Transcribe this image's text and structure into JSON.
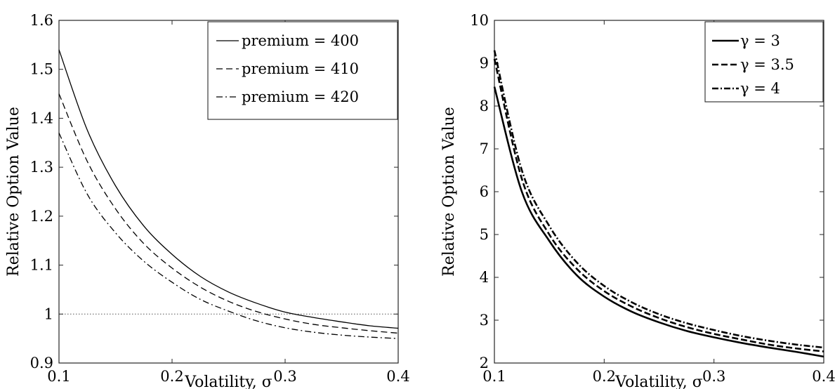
{
  "chart_data": [
    {
      "type": "line",
      "xlabel": "Volatility, σ",
      "ylabel": "Relative Option Value",
      "xlim": [
        0.1,
        0.4
      ],
      "ylim": [
        0.9,
        1.6
      ],
      "xticks": [
        "0.1",
        "0.2",
        "0.3",
        "0.4"
      ],
      "xtick_values": [
        0.1,
        0.2,
        0.3,
        0.4
      ],
      "yticks": [
        "0.9",
        "1",
        "1.1",
        "1.2",
        "1.3",
        "1.4",
        "1.5",
        "1.6"
      ],
      "ytick_values": [
        0.9,
        1.0,
        1.1,
        1.2,
        1.3,
        1.4,
        1.5,
        1.6
      ],
      "grid": false,
      "legend_position": "top-right",
      "reference_line": {
        "y": 1.0,
        "style": "dotted"
      },
      "x": [
        0.1,
        0.125,
        0.15,
        0.175,
        0.2,
        0.225,
        0.25,
        0.275,
        0.3,
        0.325,
        0.35,
        0.375,
        0.4
      ],
      "series": [
        {
          "name": "premium = 400",
          "style": "solid",
          "values": [
            1.54,
            1.376,
            1.262,
            1.18,
            1.122,
            1.077,
            1.045,
            1.022,
            1.004,
            0.993,
            0.984,
            0.976,
            0.971
          ]
        },
        {
          "name": "premium = 410",
          "style": "dashed",
          "values": [
            1.45,
            1.312,
            1.215,
            1.144,
            1.094,
            1.055,
            1.026,
            1.005,
            0.99,
            0.979,
            0.972,
            0.966,
            0.961
          ]
        },
        {
          "name": "premium = 420",
          "style": "dashdot",
          "values": [
            1.37,
            1.245,
            1.166,
            1.108,
            1.065,
            1.03,
            1.006,
            0.986,
            0.972,
            0.963,
            0.957,
            0.953,
            0.95
          ]
        }
      ]
    },
    {
      "type": "line",
      "xlabel": "Volatility, σ",
      "ylabel": "Relative Option Value",
      "xlim": [
        0.1,
        0.4
      ],
      "ylim": [
        2,
        10
      ],
      "xticks": [
        "0.1",
        "0.2",
        "0.3",
        "0.4"
      ],
      "xtick_values": [
        0.1,
        0.2,
        0.3,
        0.4
      ],
      "yticks": [
        "2",
        "3",
        "4",
        "5",
        "6",
        "7",
        "8",
        "9",
        "10"
      ],
      "ytick_values": [
        2,
        3,
        4,
        5,
        6,
        7,
        8,
        9,
        10
      ],
      "grid": false,
      "legend_position": "top-right",
      "x": [
        0.1,
        0.125,
        0.15,
        0.175,
        0.2,
        0.225,
        0.25,
        0.275,
        0.3,
        0.325,
        0.35,
        0.375,
        0.4
      ],
      "series": [
        {
          "name": "γ = 3",
          "style": "solid-bold",
          "values": [
            8.45,
            6.0,
            4.85,
            4.05,
            3.55,
            3.2,
            2.95,
            2.75,
            2.6,
            2.47,
            2.36,
            2.26,
            2.15
          ]
        },
        {
          "name": "γ = 3.5",
          "style": "dashed-bold",
          "values": [
            9.1,
            6.3,
            5.0,
            4.2,
            3.68,
            3.32,
            3.05,
            2.84,
            2.68,
            2.55,
            2.43,
            2.34,
            2.27
          ]
        },
        {
          "name": "γ = 4",
          "style": "dashdot-bold",
          "values": [
            9.3,
            6.5,
            5.2,
            4.35,
            3.8,
            3.42,
            3.14,
            2.93,
            2.77,
            2.63,
            2.52,
            2.43,
            2.36
          ]
        }
      ]
    }
  ]
}
